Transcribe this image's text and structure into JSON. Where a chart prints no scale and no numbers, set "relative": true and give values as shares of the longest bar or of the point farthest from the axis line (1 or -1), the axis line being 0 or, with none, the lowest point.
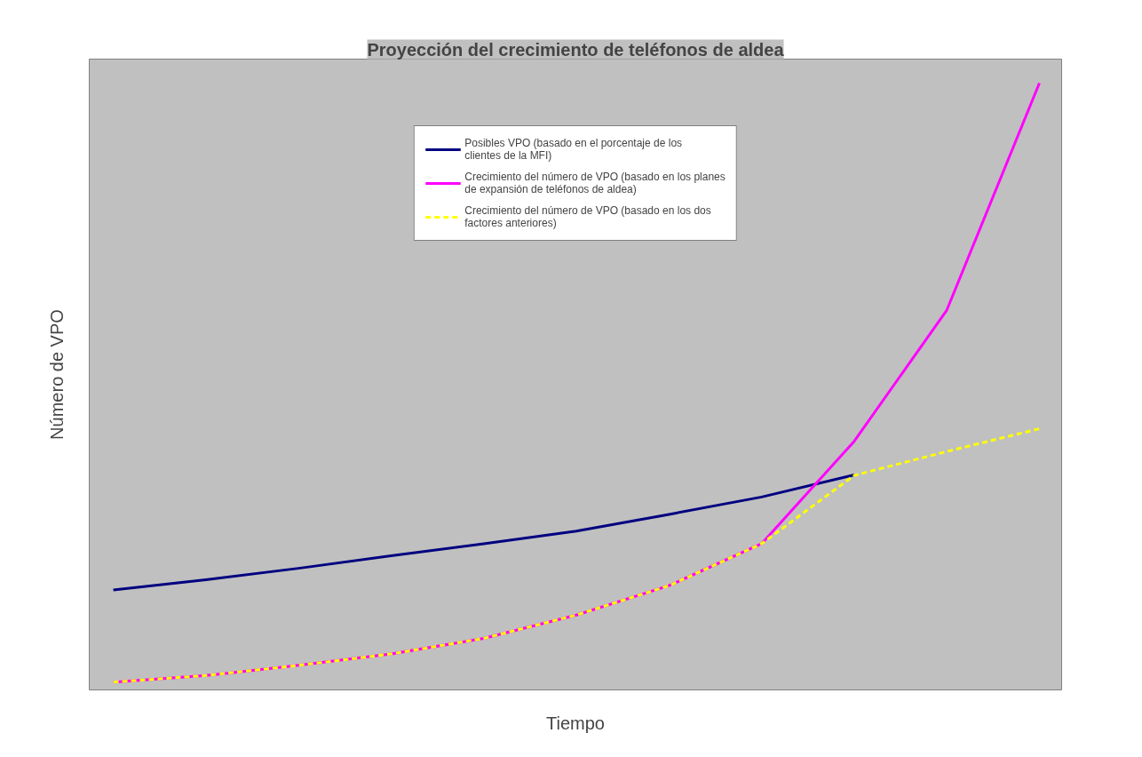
{
  "chart_data": {
    "type": "line",
    "title": "Proyección del crecimiento de teléfonos de aldea",
    "xlabel": "Tiempo",
    "ylabel": "Número de VPO",
    "relative": true,
    "categories": [
      null,
      null,
      null,
      null,
      null,
      null,
      null,
      null,
      null,
      null,
      null
    ],
    "series": [
      {
        "name": "Posibles VPO (basado en el porcentaje de los clientes de la MFI)",
        "color": "#000080",
        "values": [
          0.154,
          0.171,
          0.19,
          0.211,
          0.231,
          0.252,
          0.28,
          0.309,
          0.346,
          null,
          null
        ]
      },
      {
        "name": "Crecimiento del número de VPO (basado en los planes de expansión de teléfonos de aldea)",
        "color": "#ff00ff",
        "values": [
          0,
          0.011,
          0.028,
          0.047,
          0.073,
          0.112,
          0.161,
          0.231,
          0.402,
          0.621,
          1
        ]
      },
      {
        "name": "Crecimiento del número de VPO (basado en los dos factores anteriores)",
        "color": "#ffff00",
        "line_style": "dashed",
        "values": [
          0,
          0.011,
          0.028,
          0.047,
          0.073,
          0.112,
          0.161,
          0.231,
          0.345,
          0.385,
          0.423
        ]
      }
    ],
    "legend": "top",
    "grid": false,
    "marker": "none"
  }
}
